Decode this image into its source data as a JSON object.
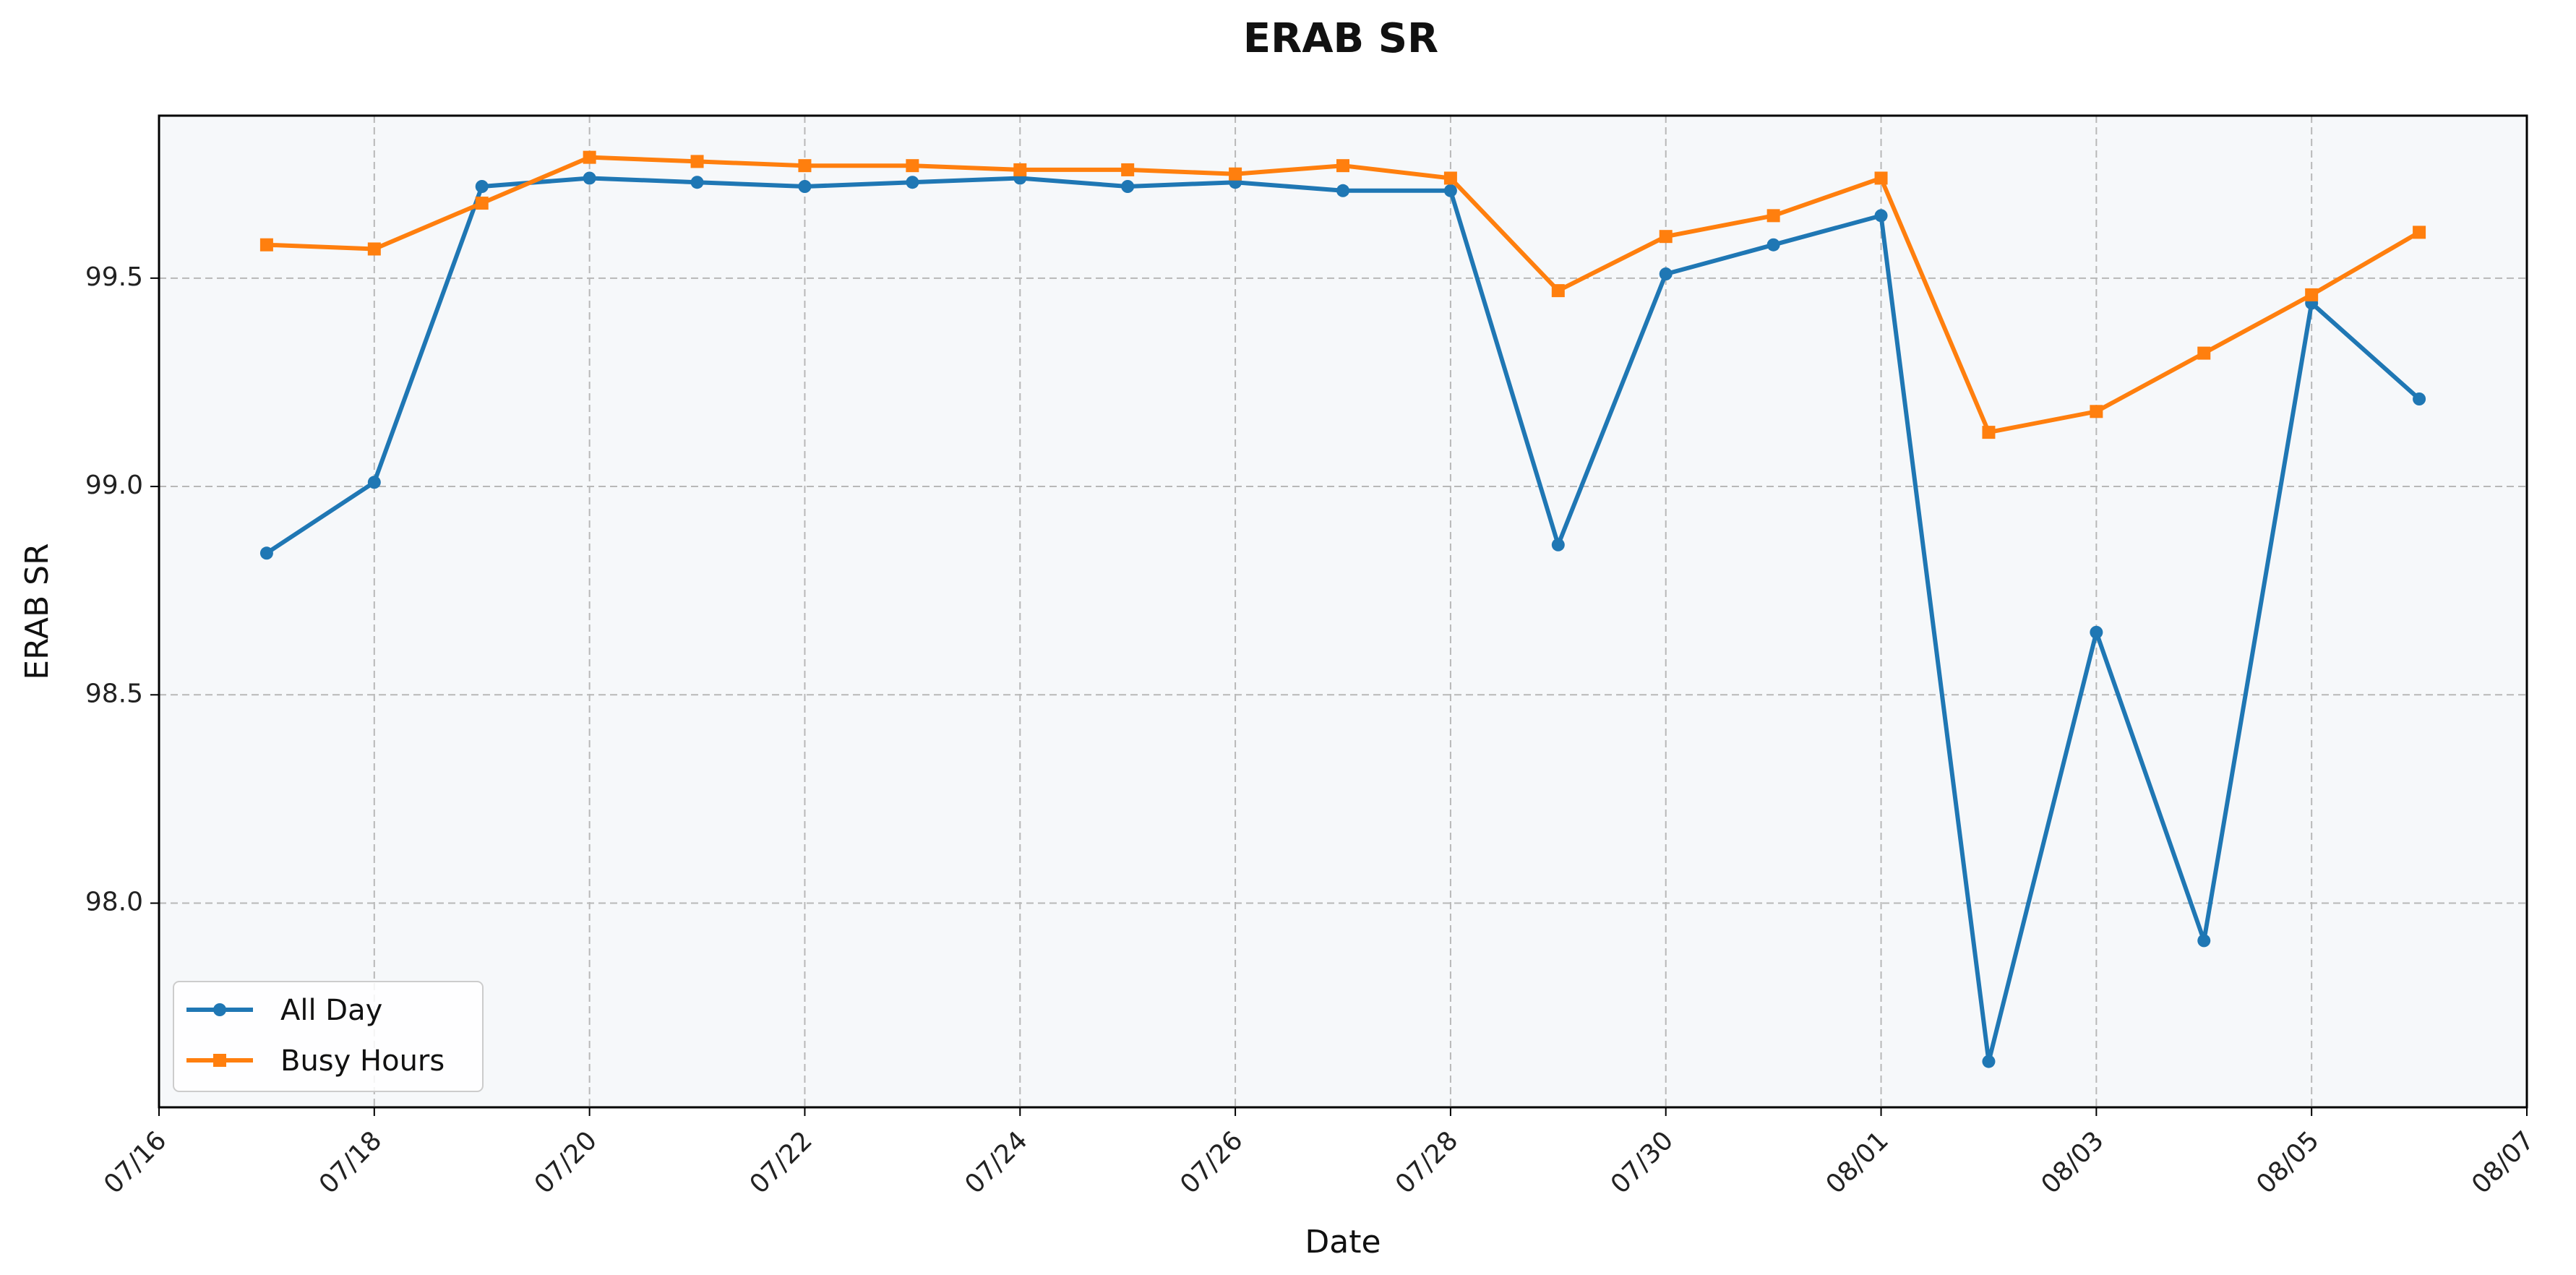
{
  "chart_data": {
    "type": "line",
    "title": "ERAB SR",
    "xlabel": "Date",
    "ylabel": "ERAB SR",
    "x": [
      "07/17",
      "07/18",
      "07/19",
      "07/20",
      "07/21",
      "07/22",
      "07/23",
      "07/24",
      "07/25",
      "07/26",
      "07/27",
      "07/28",
      "07/29",
      "07/30",
      "07/31",
      "08/01",
      "08/02",
      "08/03",
      "08/04",
      "08/05",
      "08/06"
    ],
    "x_ticks": [
      "07/16",
      "07/18",
      "07/20",
      "07/22",
      "07/24",
      "07/26",
      "07/28",
      "07/30",
      "08/01",
      "08/03",
      "08/05",
      "08/07"
    ],
    "xlim": [
      "07/16",
      "08/07"
    ],
    "y_ticks": [
      "98.0",
      "98.5",
      "99.0",
      "99.5"
    ],
    "ylim": [
      97.51,
      99.89
    ],
    "grid": true,
    "legend_position": "lower-left",
    "series": [
      {
        "name": "All Day",
        "color": "#1f77b4",
        "marker": "circle",
        "values": [
          98.84,
          99.01,
          99.72,
          99.74,
          99.73,
          99.72,
          99.73,
          99.74,
          99.72,
          99.73,
          99.71,
          99.71,
          98.86,
          99.51,
          99.58,
          99.65,
          97.62,
          98.65,
          97.91,
          99.44,
          99.21
        ]
      },
      {
        "name": "Busy Hours",
        "color": "#ff7f0e",
        "marker": "square",
        "values": [
          99.58,
          99.57,
          99.68,
          99.79,
          99.78,
          99.77,
          99.77,
          99.76,
          99.76,
          99.75,
          99.77,
          99.74,
          99.47,
          99.6,
          99.65,
          99.74,
          99.13,
          99.18,
          99.32,
          99.46,
          99.61
        ]
      }
    ]
  },
  "colors": {
    "plot_background": "#f6f8fa",
    "grid": "#b8b8b8",
    "axis": "#000000"
  }
}
